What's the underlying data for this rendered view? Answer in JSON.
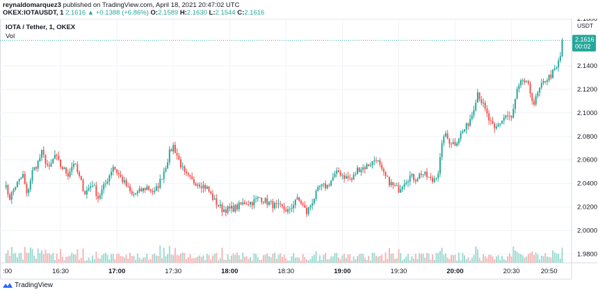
{
  "header": {
    "author": "reynaldomarquez3",
    "published_text": " published on TradingView.com, April 18, 2021 20:47:02 UTC"
  },
  "ohlc_bar": {
    "symbol": "OKEX:IOTAUSDT, 1",
    "last": "2.1616",
    "change": "▲ +0.1388 (+6.86%)",
    "o_label": "O:",
    "o_value": "2.1589",
    "h_label": "H:",
    "h_value": "2.1630",
    "l_label": "L:",
    "l_value": "2.1544",
    "c_label": "C:",
    "c_value": "2.1616"
  },
  "legend": {
    "title": "IOTA / Tether, 1, OKEX",
    "volume_label": "Vol"
  },
  "price_tag": {
    "price": "2.1616",
    "countdown": "00:02"
  },
  "axis_unit": "USDT",
  "footer": {
    "brand": "TradingView"
  },
  "colors": {
    "up": "#26a69a",
    "down": "#ef5350",
    "up_vol": "#9fdbd3",
    "down_vol": "#f7b6b5",
    "grid": "#f0f3fa",
    "price_line": "#26a69a"
  },
  "chart_data": {
    "type": "candlestick",
    "y_ticks": [
      "2.1800",
      "2.1400",
      "2.1200",
      "2.1000",
      "2.0800",
      "2.0600",
      "2.0400",
      "2.0200",
      "2.0000",
      "1.9800"
    ],
    "ylim": [
      1.975,
      2.18
    ],
    "x_tick_labels": [
      ":00",
      "16:30",
      "17:00",
      "17:30",
      "18:00",
      "18:30",
      "19:00",
      "19:30",
      "20:00",
      "20:30",
      "20:50"
    ],
    "x_tick_bold": [
      false,
      false,
      true,
      false,
      true,
      false,
      true,
      false,
      true,
      false,
      false
    ],
    "x_tick_minutes": [
      0,
      30,
      60,
      90,
      120,
      150,
      180,
      210,
      240,
      270,
      290
    ],
    "close_path_keypoints": [
      [
        0,
        2.04
      ],
      [
        3,
        2.028
      ],
      [
        6,
        2.038
      ],
      [
        10,
        2.047
      ],
      [
        12,
        2.03
      ],
      [
        15,
        2.05
      ],
      [
        18,
        2.058
      ],
      [
        20,
        2.066
      ],
      [
        24,
        2.052
      ],
      [
        27,
        2.064
      ],
      [
        30,
        2.055
      ],
      [
        34,
        2.048
      ],
      [
        37,
        2.058
      ],
      [
        40,
        2.045
      ],
      [
        43,
        2.032
      ],
      [
        47,
        2.04
      ],
      [
        50,
        2.028
      ],
      [
        54,
        2.04
      ],
      [
        58,
        2.055
      ],
      [
        62,
        2.045
      ],
      [
        65,
        2.038
      ],
      [
        68,
        2.03
      ],
      [
        72,
        2.033
      ],
      [
        76,
        2.037
      ],
      [
        80,
        2.032
      ],
      [
        83,
        2.042
      ],
      [
        86,
        2.055
      ],
      [
        88,
        2.066
      ],
      [
        90,
        2.072
      ],
      [
        93,
        2.06
      ],
      [
        96,
        2.048
      ],
      [
        100,
        2.042
      ],
      [
        104,
        2.04
      ],
      [
        108,
        2.036
      ],
      [
        112,
        2.025
      ],
      [
        116,
        2.018
      ],
      [
        120,
        2.018
      ],
      [
        124,
        2.02
      ],
      [
        128,
        2.024
      ],
      [
        132,
        2.024
      ],
      [
        136,
        2.028
      ],
      [
        140,
        2.024
      ],
      [
        144,
        2.021
      ],
      [
        148,
        2.019
      ],
      [
        152,
        2.016
      ],
      [
        155,
        2.027
      ],
      [
        158,
        2.024
      ],
      [
        161,
        2.015
      ],
      [
        164,
        2.025
      ],
      [
        168,
        2.037
      ],
      [
        172,
        2.038
      ],
      [
        175,
        2.045
      ],
      [
        178,
        2.05
      ],
      [
        181,
        2.046
      ],
      [
        185,
        2.043
      ],
      [
        188,
        2.052
      ],
      [
        192,
        2.054
      ],
      [
        196,
        2.058
      ],
      [
        198,
        2.062
      ],
      [
        201,
        2.05
      ],
      [
        204,
        2.043
      ],
      [
        207,
        2.038
      ],
      [
        210,
        2.035
      ],
      [
        213,
        2.042
      ],
      [
        216,
        2.046
      ],
      [
        219,
        2.044
      ],
      [
        222,
        2.049
      ],
      [
        225,
        2.046
      ],
      [
        228,
        2.042
      ],
      [
        231,
        2.05
      ],
      [
        234,
        2.082
      ],
      [
        237,
        2.076
      ],
      [
        240,
        2.074
      ],
      [
        243,
        2.082
      ],
      [
        246,
        2.088
      ],
      [
        249,
        2.099
      ],
      [
        252,
        2.118
      ],
      [
        255,
        2.106
      ],
      [
        258,
        2.094
      ],
      [
        261,
        2.085
      ],
      [
        264,
        2.092
      ],
      [
        267,
        2.098
      ],
      [
        270,
        2.095
      ],
      [
        273,
        2.118
      ],
      [
        276,
        2.128
      ],
      [
        279,
        2.122
      ],
      [
        282,
        2.108
      ],
      [
        285,
        2.12
      ],
      [
        288,
        2.128
      ],
      [
        291,
        2.132
      ],
      [
        294,
        2.138
      ],
      [
        296,
        2.148
      ],
      [
        297,
        2.162
      ]
    ],
    "last_close": 2.1616
  }
}
